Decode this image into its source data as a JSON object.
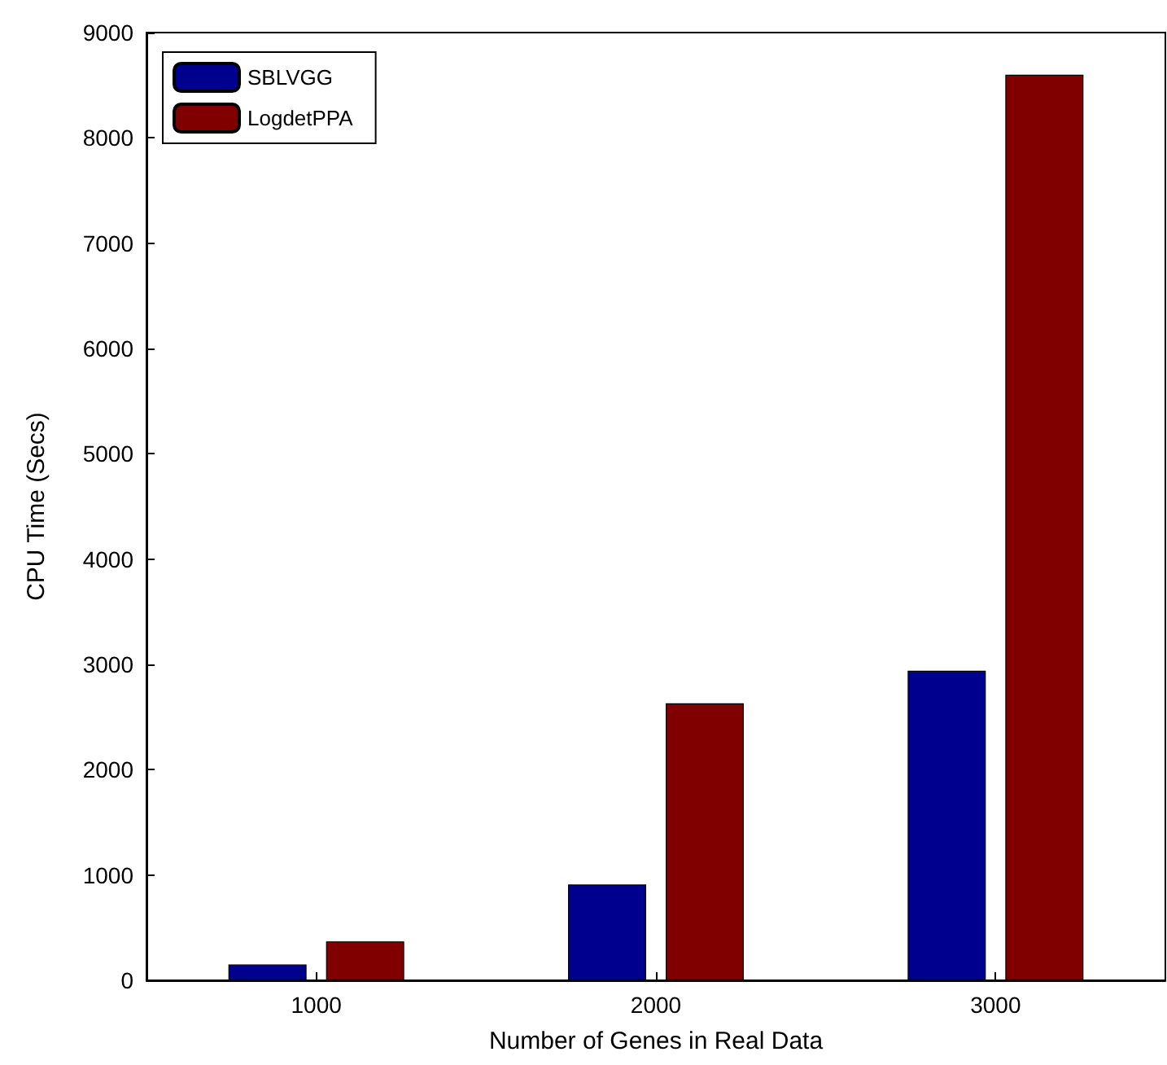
{
  "chart_data": {
    "type": "bar",
    "xlabel": "Number of Genes in Real Data",
    "ylabel": "CPU Time (Secs)",
    "categories": [
      "1000",
      "2000",
      "3000"
    ],
    "series": [
      {
        "name": "SBLVGG",
        "color": "#00008f",
        "values": [
          150,
          910,
          2940
        ]
      },
      {
        "name": "LogdetPPA",
        "color": "#800000",
        "values": [
          370,
          2630,
          8600
        ]
      }
    ],
    "ylim": [
      0,
      9000
    ],
    "yticks": [
      0,
      1000,
      2000,
      3000,
      4000,
      5000,
      6000,
      7000,
      8000,
      9000
    ],
    "grid": false,
    "legend": "top left"
  }
}
